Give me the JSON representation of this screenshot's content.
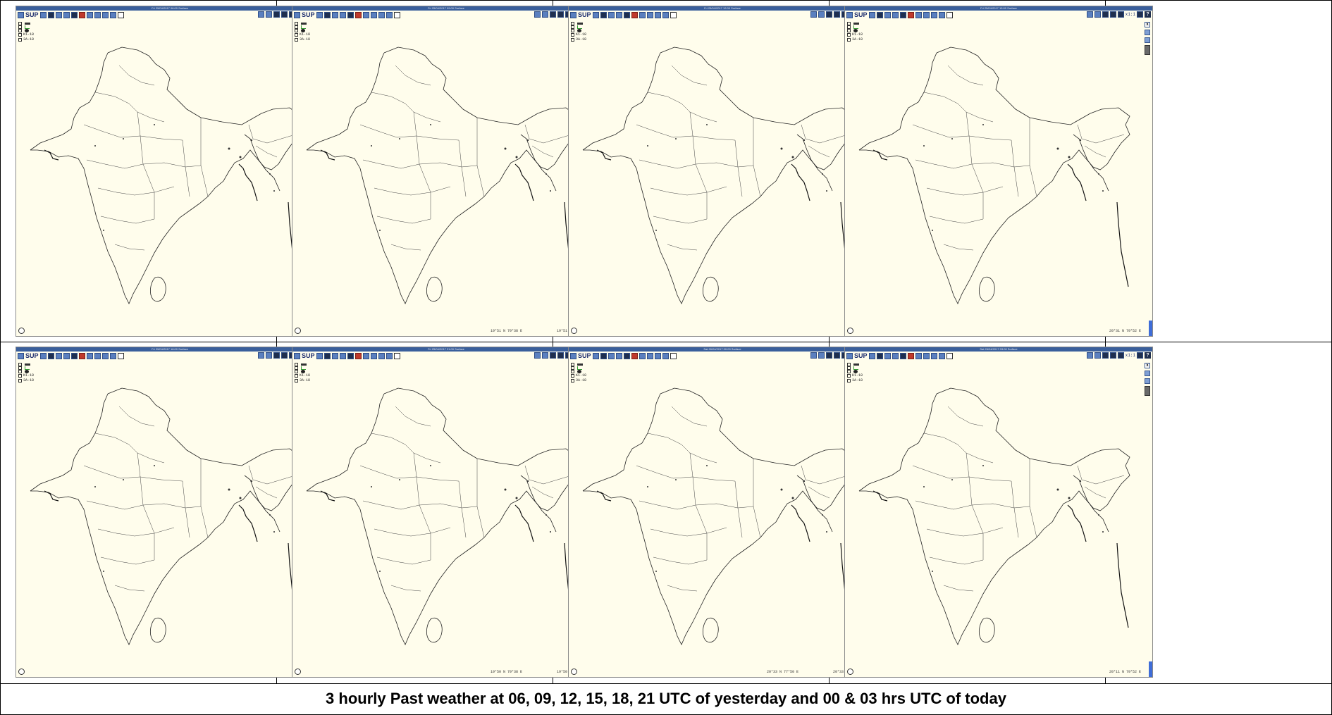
{
  "caption": "3 hourly Past weather at 06, 09, 12, 15, 18, 21 UTC of yesterday and 00 & 03 hrs UTC of today",
  "colors": {
    "map_bg": "#fffdec",
    "titlebar": "#3a5f9c",
    "toolbar_icon": "#5a7fbf",
    "scroll_accent": "#3f6dd8",
    "outline": "#222222"
  },
  "toolbar": {
    "app_label": "SUP",
    "zoom_label": "x1:1",
    "help_label": "?"
  },
  "legend": {
    "items": [
      "",
      "",
      "",
      "K1-18",
      "3A-18"
    ]
  },
  "panels": [
    {
      "title": "Fri 25/04/2017 06:00 Surface",
      "coord_a": "",
      "coord_b": ""
    },
    {
      "title": "Fri 25/04/2017 09:00 Surface",
      "coord_a": "19°51 N 79°38 E",
      "coord_b": "19°51 N 79°38 E"
    },
    {
      "title": "Fri 25/04/2017 12:00 Surface",
      "coord_a": "",
      "coord_b": ""
    },
    {
      "title": "Fri 25/04/2017 15:00 Surface",
      "coord_a": "",
      "coord_b": "20°31 N 79°52 E"
    },
    {
      "title": "Fri 25/04/2017 18:00 Surface",
      "coord_a": "",
      "coord_b": ""
    },
    {
      "title": "Fri 25/04/2017 21:00 Surface",
      "coord_a": "19°50 N 79°38 E",
      "coord_b": "19°50 N 79°38 E"
    },
    {
      "title": "Sat 26/04/2017 00:00 Surface",
      "coord_a": "20°33 N 77°50 E",
      "coord_b": "20°33 N 77°50 E"
    },
    {
      "title": "Sat 26/04/2017 03:00 Surface",
      "coord_a": "",
      "coord_b": "20°11 N 79°52 E"
    }
  ]
}
